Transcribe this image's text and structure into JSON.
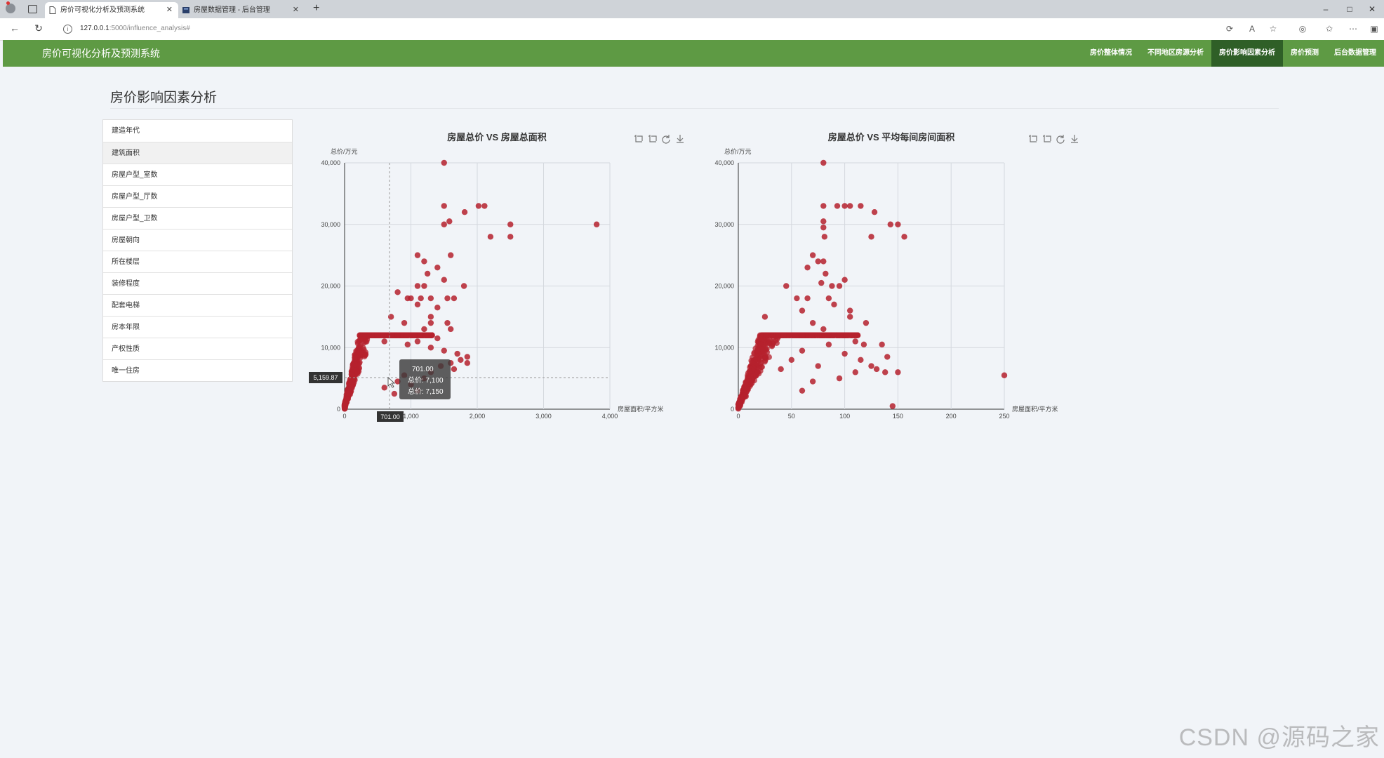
{
  "browser": {
    "tabs": [
      {
        "label": "房价可视化分析及预测系统",
        "active": true
      },
      {
        "label": "房屋数据管理 - 后台管理",
        "active": false
      }
    ],
    "url_host": "127.0.0.1",
    "url_path": ":5000/influence_analysis#",
    "window_controls": [
      "–",
      "□",
      "✕"
    ]
  },
  "app": {
    "brand": "房价可视化分析及预测系统",
    "menu": [
      {
        "label": "房价整体情况",
        "active": false
      },
      {
        "label": "不同地区房源分析",
        "active": false
      },
      {
        "label": "房价影响因素分析",
        "active": true
      },
      {
        "label": "房价预测",
        "active": false
      },
      {
        "label": "后台数据管理",
        "active": false
      }
    ],
    "accent": "#5e9a44"
  },
  "page": {
    "title": "房价影响因素分析",
    "factors": [
      {
        "label": "建造年代",
        "active": false
      },
      {
        "label": "建筑面积",
        "active": true
      },
      {
        "label": "房屋户型_室数",
        "active": false
      },
      {
        "label": "房屋户型_厅数",
        "active": false
      },
      {
        "label": "房屋户型_卫数",
        "active": false
      },
      {
        "label": "房屋朝向",
        "active": false
      },
      {
        "label": "所在楼层",
        "active": false
      },
      {
        "label": "装修程度",
        "active": false
      },
      {
        "label": "配套电梯",
        "active": false
      },
      {
        "label": "房本年限",
        "active": false
      },
      {
        "label": "产权性质",
        "active": false
      },
      {
        "label": "唯一住房",
        "active": false
      }
    ]
  },
  "chart_data": [
    {
      "type": "scatter",
      "title": "房屋总价 VS 房屋总面积",
      "xlabel": "房屋面积/平方米",
      "ylabel": "总价/万元",
      "xlim": [
        0,
        4000
      ],
      "ylim": [
        0,
        40000
      ],
      "xticks": [
        "0",
        "1,000",
        "2,000",
        "3,000",
        "4,000"
      ],
      "yticks": [
        "0",
        "10,000",
        "20,000",
        "30,000",
        "40,000"
      ],
      "grid": true,
      "color": "#b5212e",
      "points": [
        [
          1500,
          40000
        ],
        [
          1500,
          33000
        ],
        [
          1580,
          30500
        ],
        [
          1500,
          30000
        ],
        [
          1810,
          32000
        ],
        [
          2020,
          33000
        ],
        [
          2110,
          33000
        ],
        [
          2200,
          28000
        ],
        [
          2500,
          30000
        ],
        [
          2500,
          28000
        ],
        [
          3800,
          30000
        ],
        [
          1100,
          25000
        ],
        [
          1600,
          25000
        ],
        [
          1200,
          24000
        ],
        [
          1400,
          23000
        ],
        [
          1250,
          22000
        ],
        [
          1500,
          21000
        ],
        [
          1800,
          20000
        ],
        [
          1100,
          20000
        ],
        [
          1200,
          20000
        ],
        [
          800,
          19000
        ],
        [
          950,
          18000
        ],
        [
          1000,
          18000
        ],
        [
          1150,
          18000
        ],
        [
          1300,
          18000
        ],
        [
          1550,
          18000
        ],
        [
          1650,
          18000
        ],
        [
          1100,
          17000
        ],
        [
          1400,
          16500
        ],
        [
          700,
          15000
        ],
        [
          1300,
          15000
        ],
        [
          1550,
          14000
        ],
        [
          1300,
          14000
        ],
        [
          900,
          14000
        ],
        [
          1200,
          13000
        ],
        [
          1600,
          13000
        ],
        [
          1050,
          12000
        ],
        [
          800,
          12000
        ],
        [
          1400,
          11500
        ],
        [
          1100,
          11000
        ],
        [
          600,
          11000
        ],
        [
          950,
          10500
        ],
        [
          1300,
          10000
        ],
        [
          1500,
          9500
        ],
        [
          1700,
          9000
        ],
        [
          1850,
          8500
        ],
        [
          1750,
          8000
        ],
        [
          1600,
          7500
        ],
        [
          1850,
          7500
        ],
        [
          1450,
          7000
        ],
        [
          1650,
          6500
        ],
        [
          1300,
          6000
        ],
        [
          900,
          5500
        ],
        [
          1200,
          5000
        ],
        [
          800,
          4500
        ],
        [
          1000,
          4000
        ],
        [
          600,
          3500
        ],
        [
          1100,
          3000
        ],
        [
          750,
          2500
        ]
      ],
      "tooltip": {
        "lines": [
          "701.00",
          "总价: 7,100",
          "总价: 7,150"
        ]
      },
      "axis_pointer": {
        "x": "701.00",
        "y": "5,159.87"
      },
      "toolbox": [
        "zoom-icon",
        "zoom-reset-icon",
        "restore-icon",
        "download-icon"
      ]
    },
    {
      "type": "scatter",
      "title": "房屋总价 VS 平均每间房间面积",
      "xlabel": "房屋面积/平方米",
      "ylabel": "总价/万元",
      "xlim": [
        0,
        250
      ],
      "ylim": [
        0,
        40000
      ],
      "xticks": [
        "0",
        "50",
        "100",
        "150",
        "200",
        "250"
      ],
      "yticks": [
        "0",
        "10,000",
        "20,000",
        "30,000",
        "40,000"
      ],
      "grid": true,
      "color": "#b5212e",
      "points": [
        [
          80,
          40000
        ],
        [
          80,
          33000
        ],
        [
          93,
          33000
        ],
        [
          100,
          33000
        ],
        [
          105,
          33000
        ],
        [
          115,
          33000
        ],
        [
          128,
          32000
        ],
        [
          80,
          30500
        ],
        [
          143,
          30000
        ],
        [
          150,
          30000
        ],
        [
          80,
          29500
        ],
        [
          81,
          28000
        ],
        [
          125,
          28000
        ],
        [
          156,
          28000
        ],
        [
          70,
          25000
        ],
        [
          75,
          24000
        ],
        [
          80,
          24000
        ],
        [
          65,
          23000
        ],
        [
          82,
          22000
        ],
        [
          100,
          21000
        ],
        [
          78,
          20500
        ],
        [
          88,
          20000
        ],
        [
          95,
          20000
        ],
        [
          45,
          20000
        ],
        [
          55,
          18000
        ],
        [
          65,
          18000
        ],
        [
          85,
          18000
        ],
        [
          90,
          17000
        ],
        [
          105,
          16000
        ],
        [
          60,
          16000
        ],
        [
          105,
          15000
        ],
        [
          25,
          15000
        ],
        [
          120,
          14000
        ],
        [
          70,
          14000
        ],
        [
          80,
          13000
        ],
        [
          90,
          12000
        ],
        [
          110,
          11000
        ],
        [
          118,
          10500
        ],
        [
          135,
          10500
        ],
        [
          85,
          10500
        ],
        [
          100,
          9000
        ],
        [
          140,
          8500
        ],
        [
          115,
          8000
        ],
        [
          125,
          7000
        ],
        [
          130,
          6500
        ],
        [
          110,
          6000
        ],
        [
          138,
          6000
        ],
        [
          250,
          5500
        ],
        [
          150,
          6000
        ],
        [
          60,
          9500
        ],
        [
          50,
          8000
        ],
        [
          75,
          7000
        ],
        [
          40,
          6500
        ],
        [
          95,
          5000
        ],
        [
          70,
          4500
        ],
        [
          60,
          3000
        ],
        [
          145,
          500
        ]
      ],
      "toolbox": [
        "zoom-icon",
        "zoom-reset-icon",
        "restore-icon",
        "download-icon"
      ]
    }
  ],
  "watermark": "CSDN @源码之家"
}
